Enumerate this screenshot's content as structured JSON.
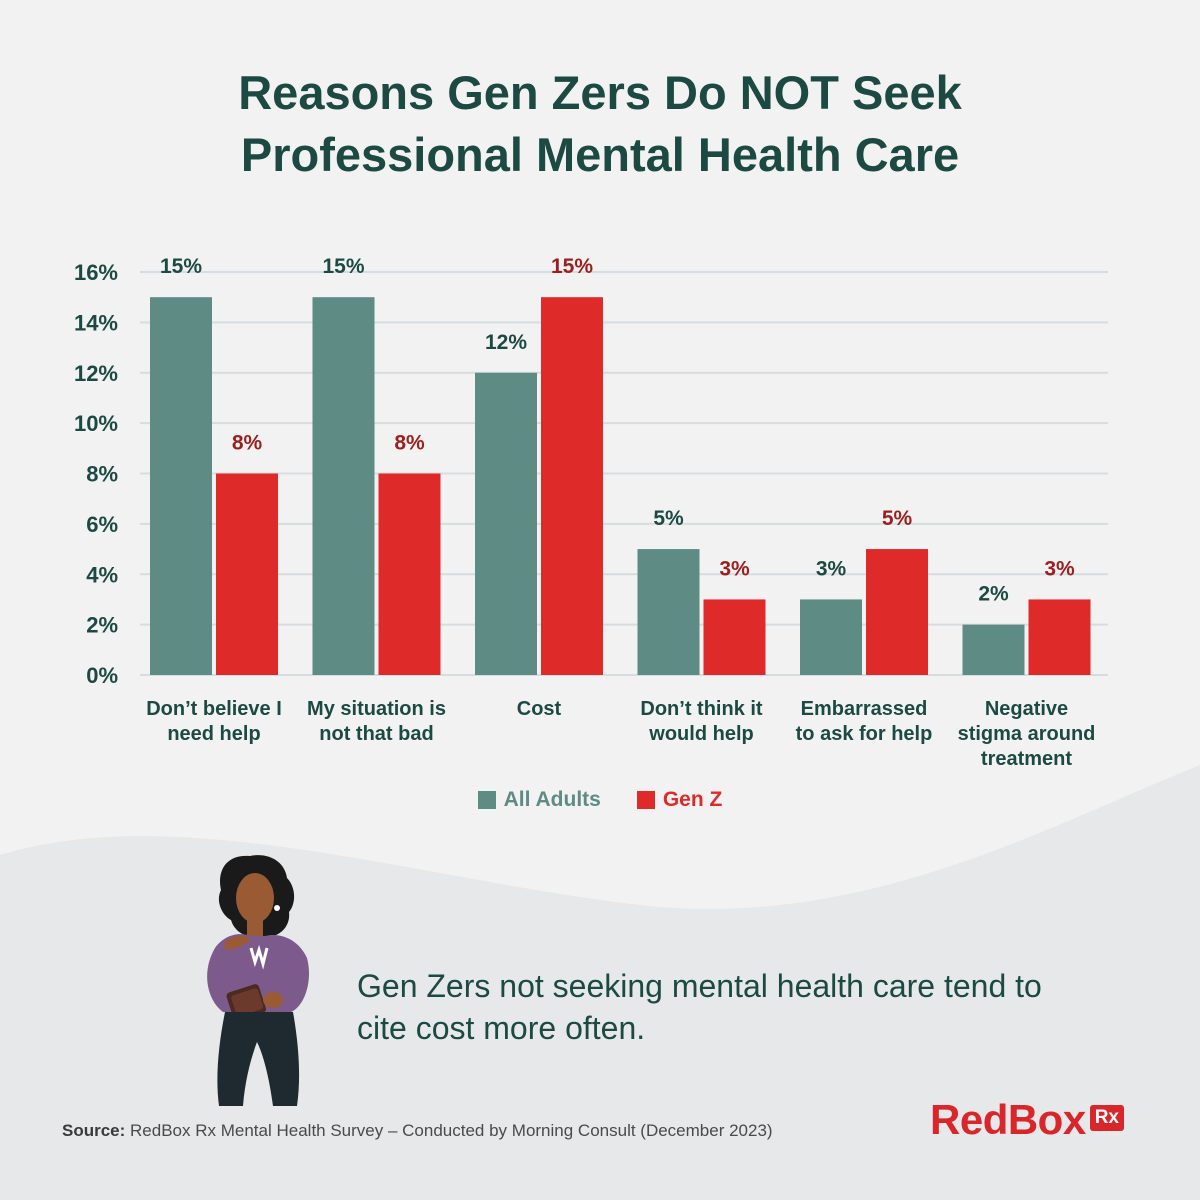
{
  "title_line1": "Reasons Gen Zers Do NOT Seek",
  "title_line2": "Professional Mental Health Care",
  "colors": {
    "all_adults": "#5f8b85",
    "gen_z": "#df2a2a",
    "gen_z_label": "#9b1f1f",
    "text": "#1c4a43"
  },
  "chart_data": {
    "type": "bar",
    "categories": [
      [
        "Don’t believe I",
        "need help"
      ],
      [
        "My situation is",
        "not that bad"
      ],
      [
        "Cost"
      ],
      [
        "Don’t think it",
        "would help"
      ],
      [
        "Embarrassed",
        "to ask for help"
      ],
      [
        "Negative",
        "stigma around",
        "treatment"
      ]
    ],
    "series": [
      {
        "name": "All Adults",
        "values": [
          15,
          15,
          12,
          5,
          3,
          2
        ],
        "labels": [
          "15%",
          "15%",
          "12%",
          "5%",
          "3%",
          "2%"
        ]
      },
      {
        "name": "Gen Z",
        "values": [
          8,
          8,
          15,
          3,
          5,
          3
        ],
        "labels": [
          "8%",
          "8%",
          "15%",
          "3%",
          "5%",
          "3%"
        ]
      }
    ],
    "ylim": [
      0,
      16
    ],
    "yticks": [
      0,
      2,
      4,
      6,
      8,
      10,
      12,
      14,
      16
    ],
    "ytick_labels": [
      "0%",
      "2%",
      "4%",
      "6%",
      "8%",
      "10%",
      "12%",
      "14%",
      "16%"
    ],
    "grid": true,
    "legend": "bottom-center"
  },
  "note": "Gen Zers not seeking mental health care tend to cite cost more often.",
  "source_label": "Source:",
  "source_text": "RedBox Rx Mental Health Survey – Conducted by Morning Consult (December 2023)",
  "logo_text": "RedBox",
  "logo_badge": "Rx"
}
